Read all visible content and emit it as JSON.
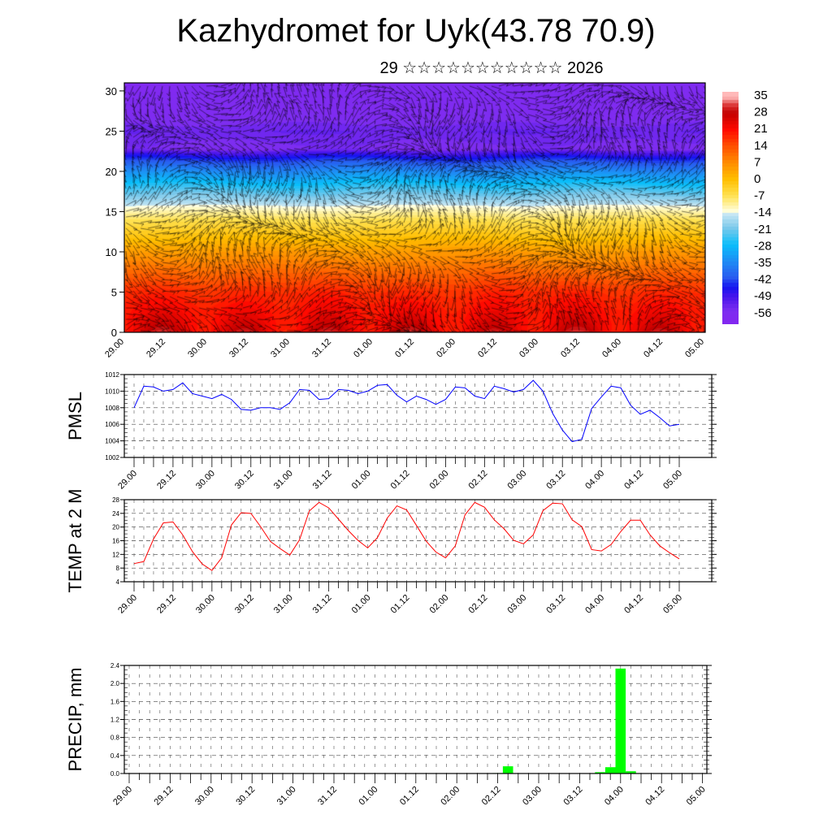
{
  "header": {
    "title": "Kazhydromet for Uyk(43.78 70.9)",
    "subtitle": "29 ☆☆☆☆☆☆☆☆☆☆☆ 2026"
  },
  "chart_data": [
    {
      "type": "heatmap",
      "name": "vertical temperature and wind cross-section",
      "ylim": [
        0,
        31
      ],
      "yticks": [
        "0",
        "5",
        "10",
        "15",
        "20",
        "25",
        "30"
      ],
      "xticks": [
        "29.00",
        "29.12",
        "30.00",
        "30.12",
        "31.00",
        "31.12",
        "01.00",
        "01.12",
        "02.00",
        "02.12",
        "03.00",
        "03.12",
        "04.00",
        "04.12",
        "05.00"
      ],
      "colorbar_labels": [
        "35",
        "28",
        "21",
        "14",
        "7",
        "0",
        "-7",
        "-14",
        "-21",
        "-28",
        "-35",
        "-42",
        "-49",
        "-56"
      ],
      "colors": {
        "hot": "#c00000",
        "cold": "#7a2cf0"
      }
    },
    {
      "type": "line",
      "ylabel": "PMSL",
      "ylim": [
        1002,
        1012
      ],
      "yticks": [
        "1012",
        "1010",
        "1008",
        "1006",
        "1004",
        "1002"
      ],
      "xticks": [
        "29.00",
        "29.12",
        "30.00",
        "30.12",
        "31.00",
        "31.12",
        "01.00",
        "01.12",
        "02.00",
        "02.12",
        "03.00",
        "03.12",
        "04.00",
        "04.12",
        "05.00"
      ],
      "step_hours": 3,
      "color": "#0000ff",
      "values": [
        1008.0,
        1010.6,
        1010.5,
        1010.0,
        1010.2,
        1011.0,
        1009.7,
        1009.4,
        1009.1,
        1009.6,
        1009.0,
        1007.8,
        1007.7,
        1008.0,
        1008.0,
        1007.8,
        1008.6,
        1010.2,
        1010.1,
        1009.0,
        1009.1,
        1010.2,
        1010.1,
        1009.7,
        1010.0,
        1010.7,
        1010.8,
        1009.5,
        1008.7,
        1009.4,
        1009.0,
        1008.4,
        1009.0,
        1010.5,
        1010.4,
        1009.4,
        1009.1,
        1010.6,
        1010.3,
        1009.9,
        1010.2,
        1011.3,
        1010.0,
        1007.3,
        1005.3,
        1003.9,
        1004.2,
        1007.9,
        1009.3,
        1010.6,
        1010.4,
        1008.3,
        1007.2,
        1007.7,
        1006.8,
        1005.8,
        1006.0
      ]
    },
    {
      "type": "line",
      "ylabel": "TEMP at 2 M",
      "ylim": [
        4,
        28
      ],
      "yticks": [
        "28",
        "24",
        "20",
        "16",
        "12",
        "8",
        "4"
      ],
      "xticks": [
        "29.00",
        "29.12",
        "30.00",
        "30.12",
        "31.00",
        "31.12",
        "01.00",
        "01.12",
        "02.00",
        "02.12",
        "03.00",
        "03.12",
        "04.00",
        "04.12",
        "05.00"
      ],
      "step_hours": 3,
      "color": "#ff0000",
      "values": [
        9.3,
        9.9,
        16.5,
        21.2,
        21.5,
        17.7,
        12.8,
        9.2,
        7.3,
        11.0,
        20.6,
        24.2,
        24.0,
        20.1,
        15.8,
        13.7,
        11.8,
        16.3,
        24.7,
        27.2,
        25.6,
        22.3,
        19.0,
        16.1,
        13.9,
        16.9,
        22.6,
        26.2,
        25.0,
        20.5,
        15.9,
        12.7,
        11.0,
        14.5,
        23.6,
        27.2,
        25.8,
        22.1,
        19.5,
        16.1,
        15.1,
        17.7,
        24.8,
        27.0,
        26.8,
        22.1,
        20.1,
        13.4,
        13.0,
        14.9,
        18.7,
        22.0,
        22.0,
        17.7,
        14.5,
        12.5,
        10.7
      ]
    },
    {
      "type": "bar",
      "ylabel": "PRECIP, mm",
      "ylim": [
        0,
        2.4
      ],
      "yticks": [
        "2.4",
        "2.0",
        "1.6",
        "1.2",
        "0.8",
        "0.4",
        "0.0"
      ],
      "xticks": [
        "29.00",
        "29.12",
        "30.00",
        "30.12",
        "31.00",
        "31.12",
        "01.00",
        "01.12",
        "02.00",
        "02.12",
        "03.00",
        "03.12",
        "04.00",
        "04.12",
        "05.00"
      ],
      "step_hours": 3,
      "color": "#00ff00",
      "values": [
        0,
        0,
        0,
        0,
        0,
        0,
        0,
        0,
        0,
        0,
        0,
        0,
        0,
        0,
        0,
        0,
        0,
        0,
        0,
        0,
        0,
        0,
        0,
        0,
        0,
        0,
        0,
        0,
        0,
        0,
        0,
        0,
        0,
        0,
        0,
        0,
        0.01,
        0.16,
        0,
        0,
        0,
        0,
        0,
        0,
        0,
        0,
        0.03,
        0.14,
        2.33,
        0.05,
        0,
        0,
        0,
        0,
        0,
        0,
        0
      ]
    }
  ]
}
